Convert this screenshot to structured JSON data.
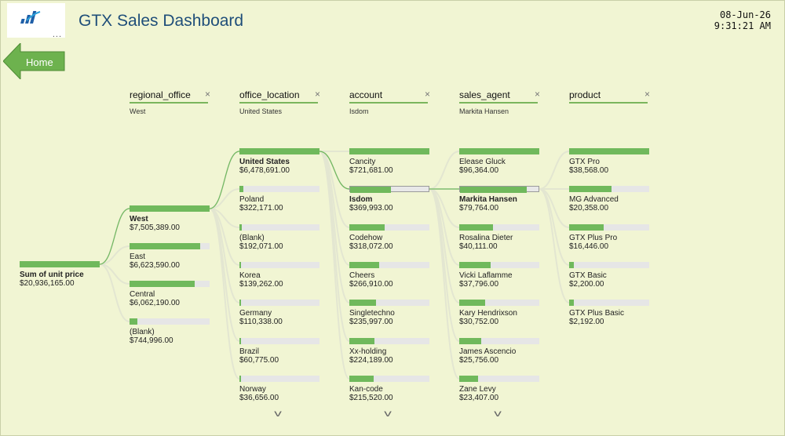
{
  "header": {
    "title": "GTX Sales Dashboard",
    "date": "08-Jun-26",
    "time": "9:31:21 AM",
    "more_dots": "..."
  },
  "nav": {
    "home_label": "Home"
  },
  "columns": [
    {
      "name": "regional_office",
      "sub": "West",
      "close": "×"
    },
    {
      "name": "office_location",
      "sub": "United States",
      "close": "×"
    },
    {
      "name": "account",
      "sub": "Isdom",
      "close": "×"
    },
    {
      "name": "sales_agent",
      "sub": "Markita Hansen",
      "close": "×"
    },
    {
      "name": "product",
      "sub": "",
      "close": "×"
    }
  ],
  "root": {
    "label": "Sum of unit price",
    "value": "$20,936,165.00",
    "fill": 1.0
  },
  "regional_office": [
    {
      "label": "West",
      "value": "$7,505,389.00",
      "fill": 1.0
    },
    {
      "label": "East",
      "value": "$6,623,590.00",
      "fill": 0.88
    },
    {
      "label": "Central",
      "value": "$6,062,190.00",
      "fill": 0.81
    },
    {
      "label": "(Blank)",
      "value": "$744,996.00",
      "fill": 0.1
    }
  ],
  "office_location": [
    {
      "label": "United States",
      "value": "$6,478,691.00",
      "fill": 1.0
    },
    {
      "label": "Poland",
      "value": "$322,171.00",
      "fill": 0.05
    },
    {
      "label": "(Blank)",
      "value": "$192,071.00",
      "fill": 0.03
    },
    {
      "label": "Korea",
      "value": "$139,262.00",
      "fill": 0.02
    },
    {
      "label": "Germany",
      "value": "$110,338.00",
      "fill": 0.02
    },
    {
      "label": "Brazil",
      "value": "$60,775.00",
      "fill": 0.01
    },
    {
      "label": "Norway",
      "value": "$36,656.00",
      "fill": 0.006
    }
  ],
  "account": [
    {
      "label": "Cancity",
      "value": "$721,681.00",
      "fill": 1.0
    },
    {
      "label": "Isdom",
      "value": "$369,993.00",
      "fill": 0.51
    },
    {
      "label": "Codehow",
      "value": "$318,072.00",
      "fill": 0.44
    },
    {
      "label": "Cheers",
      "value": "$266,910.00",
      "fill": 0.37
    },
    {
      "label": "Singletechno",
      "value": "$235,997.00",
      "fill": 0.33
    },
    {
      "label": "Xx-holding",
      "value": "$224,189.00",
      "fill": 0.31
    },
    {
      "label": "Kan-code",
      "value": "$215,520.00",
      "fill": 0.3
    }
  ],
  "sales_agent": [
    {
      "label": "Elease Gluck",
      "value": "$96,364.00",
      "fill": 1.0
    },
    {
      "label": "Markita Hansen",
      "value": "$79,764.00",
      "fill": 0.83
    },
    {
      "label": "Rosalina Dieter",
      "value": "$40,111.00",
      "fill": 0.42
    },
    {
      "label": "Vicki Laflamme",
      "value": "$37,796.00",
      "fill": 0.39
    },
    {
      "label": "Kary Hendrixson",
      "value": "$30,752.00",
      "fill": 0.32
    },
    {
      "label": "James Ascencio",
      "value": "$25,756.00",
      "fill": 0.27
    },
    {
      "label": "Zane Levy",
      "value": "$23,407.00",
      "fill": 0.24
    }
  ],
  "product": [
    {
      "label": "GTX Pro",
      "value": "$38,568.00",
      "fill": 1.0
    },
    {
      "label": "MG Advanced",
      "value": "$20,358.00",
      "fill": 0.53
    },
    {
      "label": "GTX Plus Pro",
      "value": "$16,446.00",
      "fill": 0.43
    },
    {
      "label": "GTX Basic",
      "value": "$2,200.00",
      "fill": 0.06
    },
    {
      "label": "GTX Plus Basic",
      "value": "$2,192.00",
      "fill": 0.06
    }
  ],
  "selected": {
    "regional_office": 0,
    "office_location": 0,
    "account": 1,
    "sales_agent": 1
  },
  "colors": {
    "bar": "#70b95c",
    "track": "#e6e6e6",
    "link": "#70b95c",
    "title": "#1f4e79",
    "background": "#f1f5d3"
  },
  "icons": {
    "logo": "bar-chart-logo-icon",
    "home": "left-arrow-icon",
    "close": "close-icon",
    "more": "chevron-down-icon"
  }
}
